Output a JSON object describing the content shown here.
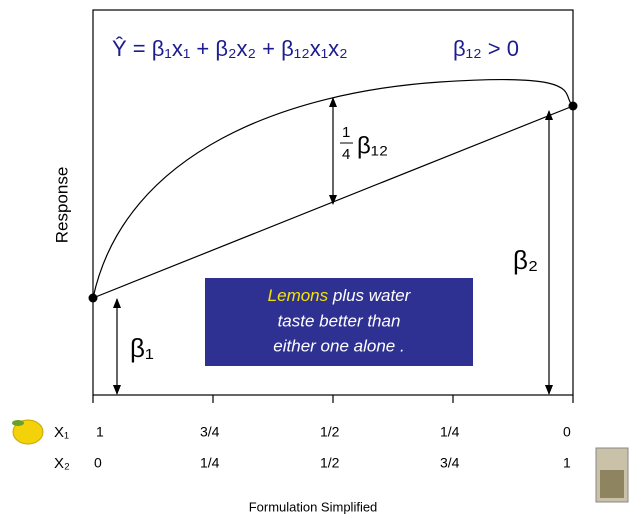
{
  "equation": "Ŷ = β₁x₁ + β₂x₂ + β₁₂x₁x₂",
  "condition": "β₁₂ > 0",
  "y_axis_label": "Response",
  "interaction_label": {
    "numerator": "1",
    "denominator": "4",
    "symbol": "β₁₂"
  },
  "beta1_label": "β₁",
  "beta2_label": "β₂",
  "callout": {
    "highlight": "Lemons",
    "line1_rest": " plus water",
    "line2": "taste better than",
    "line3": "either one alone ."
  },
  "x1_row": {
    "label": "X₁",
    "values": [
      "1",
      "3/4",
      "1/2",
      "1/4",
      "0"
    ]
  },
  "x2_row": {
    "label": "X₂",
    "values": [
      "0",
      "1/4",
      "1/2",
      "3/4",
      "1"
    ]
  },
  "caption": "Formulation Simplified"
}
